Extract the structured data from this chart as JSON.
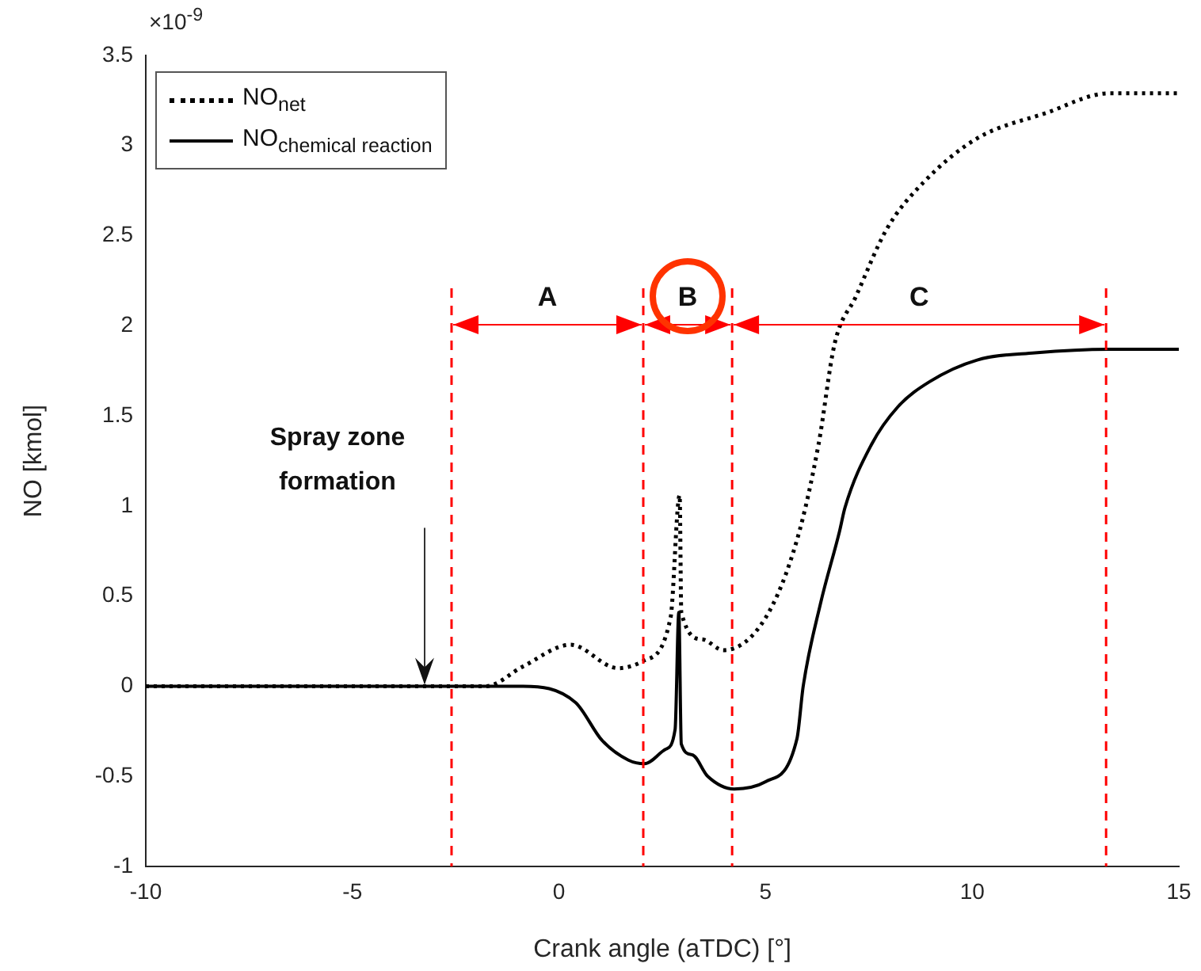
{
  "chart_data": {
    "type": "line",
    "xlabel": "Crank angle (aTDC) [°]",
    "ylabel": "NO [kmol]",
    "xlim": [
      -10,
      15
    ],
    "xticks": [
      -10,
      -5,
      0,
      5,
      10,
      15
    ],
    "ylim": [
      -1,
      3.5
    ],
    "yticks": [
      -1,
      -0.5,
      0,
      0.5,
      1,
      1.5,
      2,
      2.5,
      3,
      3.5
    ],
    "legend": "top left",
    "series": [
      {
        "name": "NO$_{net}$",
        "color": "#000000",
        "line_style": "dotted",
        "x": [
          -10,
          -3,
          -1.77,
          -0.87,
          0.28,
          1.43,
          2.04,
          2.7,
          2.92,
          2.96,
          3.47,
          3.98,
          5.0,
          5.77,
          6.28,
          6.67,
          7.18,
          7.94,
          8.84,
          10.12,
          11.78,
          13.31,
          15
        ],
        "values": [
          0,
          0,
          0,
          0.11,
          0.23,
          0.1,
          0.14,
          0.38,
          1.06,
          0.41,
          0.26,
          0.2,
          0.38,
          0.82,
          1.34,
          1.9,
          2.16,
          2.54,
          2.8,
          3.04,
          3.18,
          3.29,
          3.29
        ]
      },
      {
        "name": "NO$_{chemical reaction}$",
        "color": "#000000",
        "line_style": "solid",
        "x": [
          -10,
          -3,
          -0.87,
          0.4,
          1.04,
          1.68,
          2.07,
          2.58,
          2.81,
          2.9,
          2.96,
          3.22,
          3.6,
          4.24,
          5.0,
          5.76,
          5.91,
          6.33,
          6.79,
          6.92,
          7.56,
          8.2,
          8.97,
          10.12,
          11.52,
          13.31,
          15
        ],
        "values": [
          0,
          0,
          0,
          -0.09,
          -0.3,
          -0.41,
          -0.43,
          -0.35,
          -0.24,
          0.41,
          -0.32,
          -0.38,
          -0.5,
          -0.57,
          -0.53,
          -0.29,
          0,
          0.46,
          0.86,
          0.99,
          1.34,
          1.55,
          1.69,
          1.81,
          1.85,
          1.87,
          1.87
        ]
      }
    ],
    "ref_lines": [
      {
        "axis": "x",
        "value": -2.6,
        "color": "#ff0000",
        "line_style": "dashed"
      },
      {
        "axis": "x",
        "value": 2.04,
        "color": "#ff0000",
        "line_style": "dashed"
      },
      {
        "axis": "x",
        "value": 4.19,
        "color": "#ff0000",
        "line_style": "dashed"
      },
      {
        "axis": "x",
        "value": 13.24,
        "color": "#ff0000",
        "line_style": "dashed"
      }
    ],
    "annotations": [
      "×10$^{-9}$",
      "Spray zone formation",
      "A",
      "B",
      "C"
    ]
  }
}
